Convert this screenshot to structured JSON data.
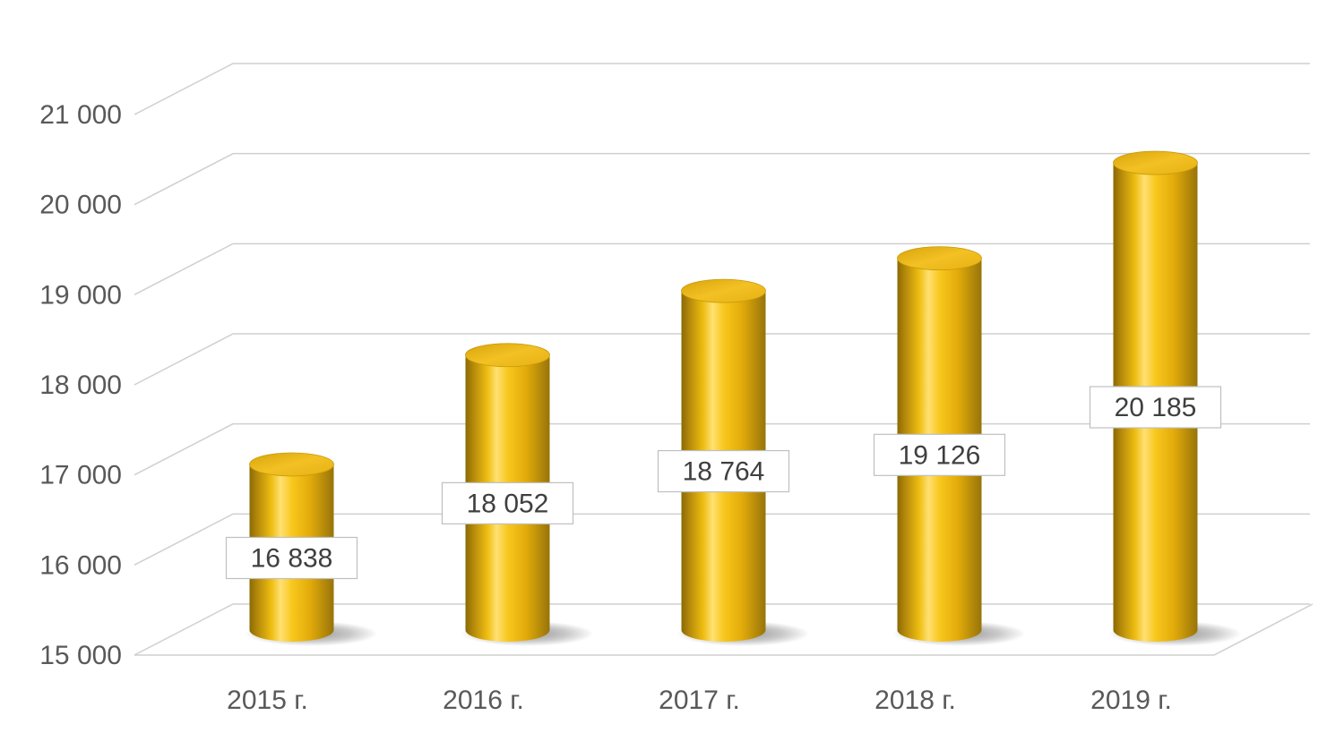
{
  "chart_data": {
    "type": "bar",
    "subtype": "3d-cylinder",
    "categories": [
      "2015 г.",
      "2016 г.",
      "2017 г.",
      "2018 г.",
      "2019 г."
    ],
    "values": [
      16838,
      18052,
      18764,
      19126,
      20185
    ],
    "data_labels": [
      "16 838",
      "18 052",
      "18 764",
      "19 126",
      "20 185"
    ],
    "title": "",
    "xlabel": "",
    "ylabel": "",
    "ylim": [
      15000,
      21000
    ],
    "ytick_interval": 1000,
    "ytick_labels": [
      "15 000",
      "16 000",
      "17 000",
      "18 000",
      "19 000",
      "20 000",
      "21 000"
    ],
    "grid": true,
    "legend": false,
    "colors": {
      "background": "#FFFFFF",
      "gridline": "#CFCFCF",
      "axis_text": "#595959",
      "bar_edge_dark": "#8A6A05",
      "bar_mid": "#EEBD12",
      "bar_highlight": "#FFE173",
      "bar_main": "#F8C81E",
      "bar_right": "#97740A",
      "bar_top_dark": "#D7A30B",
      "bar_top_light": "#F3C124",
      "shadow": "#404040",
      "data_label_text": "#3F3F3F",
      "data_label_border": "#BFBFBF",
      "data_label_bg": "#FFFFFF"
    }
  }
}
